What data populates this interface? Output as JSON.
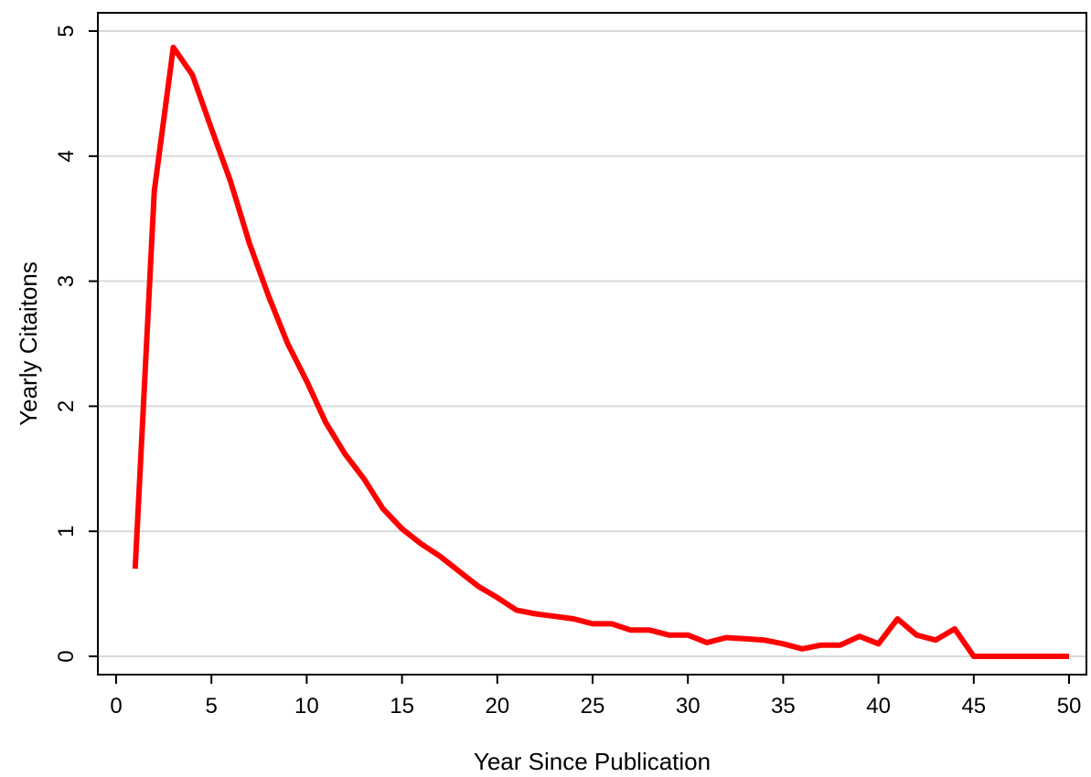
{
  "chart_data": {
    "type": "line",
    "xlabel": "Year Since Publication",
    "ylabel": "Yearly Citaitons",
    "xlim": [
      0,
      50
    ],
    "ylim": [
      0,
      5
    ],
    "x_ticks": [
      0,
      5,
      10,
      15,
      20,
      25,
      30,
      35,
      40,
      45,
      50
    ],
    "y_ticks": [
      0,
      1,
      2,
      3,
      4,
      5
    ],
    "grid": "horizontal",
    "series": [
      {
        "color": "#ff0000",
        "x": [
          1,
          2,
          3,
          4,
          5,
          6,
          7,
          8,
          9,
          10,
          11,
          12,
          13,
          14,
          15,
          16,
          17,
          18,
          19,
          20,
          21,
          22,
          23,
          24,
          25,
          26,
          27,
          28,
          29,
          30,
          31,
          32,
          33,
          34,
          35,
          36,
          37,
          38,
          39,
          40,
          41,
          42,
          43,
          44,
          45,
          46,
          47,
          48,
          49,
          50
        ],
        "y": [
          0.7,
          3.72,
          4.87,
          4.65,
          4.22,
          3.8,
          3.3,
          2.88,
          2.5,
          2.2,
          1.87,
          1.62,
          1.42,
          1.18,
          1.02,
          0.9,
          0.8,
          0.68,
          0.56,
          0.47,
          0.37,
          0.34,
          0.32,
          0.3,
          0.26,
          0.26,
          0.21,
          0.21,
          0.17,
          0.17,
          0.11,
          0.15,
          0.14,
          0.13,
          0.1,
          0.06,
          0.09,
          0.09,
          0.16,
          0.1,
          0.3,
          0.17,
          0.13,
          0.22,
          0.0,
          0.0,
          0.0,
          0.0,
          0.0,
          0.0
        ]
      }
    ]
  }
}
